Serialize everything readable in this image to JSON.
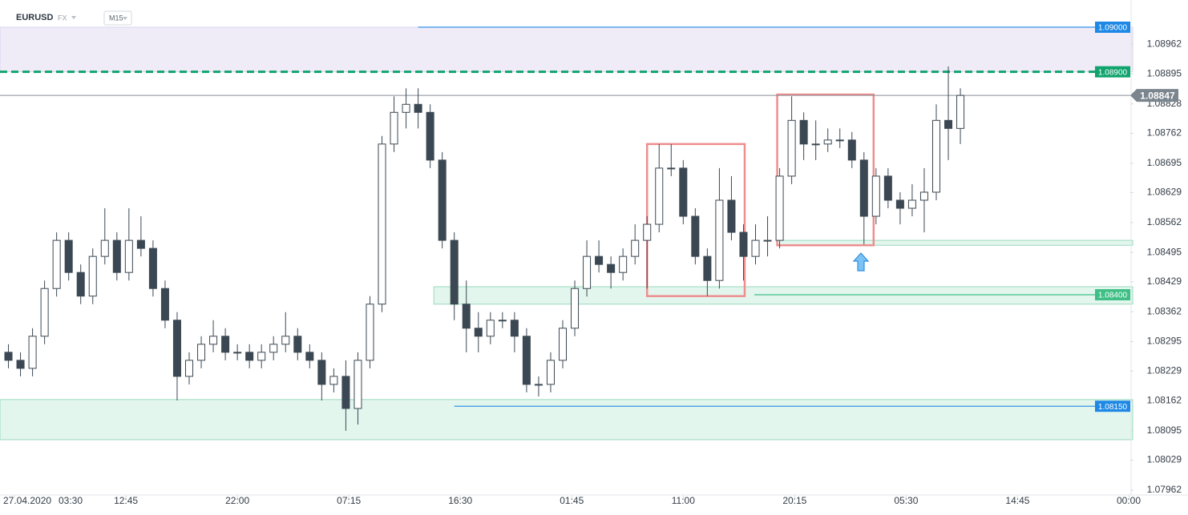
{
  "chart_data": {
    "type": "candlestick",
    "symbol": "EURUSD",
    "market": "FX",
    "timeframe": "M15",
    "date_label": "27.04.2020",
    "x": [
      3,
      4,
      5,
      6,
      7,
      8,
      9,
      10,
      11,
      12,
      13,
      14,
      15,
      16,
      17,
      18,
      19,
      20,
      21,
      22,
      23,
      24,
      25,
      26,
      27,
      28,
      29,
      30,
      31,
      32,
      33,
      34,
      35,
      36,
      37,
      38,
      39,
      40,
      41,
      42,
      43,
      44,
      45,
      46,
      47,
      48,
      49,
      50,
      51,
      52,
      53,
      54,
      55,
      56,
      57,
      58,
      59,
      60,
      61,
      62,
      63,
      64,
      65,
      66,
      67,
      68,
      69,
      70,
      71,
      72,
      73,
      74,
      75,
      76,
      77,
      78,
      79,
      80,
      81,
      82
    ],
    "open": [
      1.08271,
      1.08253,
      1.08235,
      1.08307,
      1.08414,
      1.08522,
      1.0845,
      1.08397,
      1.08486,
      1.08522,
      1.0845,
      1.08522,
      1.08504,
      1.08414,
      1.08343,
      1.08217,
      1.08253,
      1.08289,
      1.08307,
      1.08271,
      1.08271,
      1.08253,
      1.08271,
      1.08289,
      1.08307,
      1.08271,
      1.08253,
      1.08199,
      1.08217,
      1.08145,
      1.08253,
      1.08379,
      1.08738,
      1.08809,
      1.08827,
      1.08809,
      1.08702,
      1.08522,
      1.08379,
      1.08325,
      1.08307,
      1.08343,
      1.08343,
      1.08307,
      1.08199,
      1.08199,
      1.08253,
      1.08325,
      1.08414,
      1.08486,
      1.08468,
      1.0845,
      1.08486,
      1.08522,
      1.08558,
      1.08684,
      1.08684,
      1.08576,
      1.08486,
      1.08432,
      1.08612,
      1.0854,
      1.08486,
      1.08522,
      1.08522,
      1.08666,
      1.08791,
      1.08738,
      1.08738,
      1.08747,
      1.08747,
      1.08702,
      1.08576,
      1.08666,
      1.08612,
      1.08594,
      1.08612,
      1.0863,
      1.08791,
      1.08773
    ],
    "high": [
      1.08289,
      1.08271,
      1.08325,
      1.08432,
      1.0854,
      1.0854,
      1.08468,
      1.08504,
      1.08594,
      1.0854,
      1.08594,
      1.08576,
      1.08522,
      1.08432,
      1.08361,
      1.08271,
      1.08307,
      1.08343,
      1.08325,
      1.08289,
      1.08289,
      1.08289,
      1.08307,
      1.08361,
      1.08325,
      1.08289,
      1.08271,
      1.08235,
      1.08253,
      1.08271,
      1.08397,
      1.08756,
      1.08845,
      1.08863,
      1.08863,
      1.08827,
      1.0872,
      1.0854,
      1.08432,
      1.08361,
      1.08361,
      1.08361,
      1.08361,
      1.08325,
      1.08217,
      1.08271,
      1.08343,
      1.08432,
      1.08522,
      1.08522,
      1.08486,
      1.08504,
      1.08558,
      1.08576,
      1.08738,
      1.08738,
      1.08702,
      1.08594,
      1.08504,
      1.08684,
      1.08666,
      1.08558,
      1.08558,
      1.08576,
      1.08684,
      1.08845,
      1.08809,
      1.08791,
      1.08773,
      1.08773,
      1.08765,
      1.0872,
      1.08684,
      1.08684,
      1.0863,
      1.08648,
      1.08684,
      1.08827,
      1.08912,
      1.08863
    ],
    "low": [
      1.08235,
      1.08217,
      1.08217,
      1.08289,
      1.08396,
      1.08432,
      1.08379,
      1.08379,
      1.08468,
      1.08432,
      1.08432,
      1.08486,
      1.08396,
      1.08325,
      1.08163,
      1.08199,
      1.08235,
      1.08271,
      1.08253,
      1.08253,
      1.08235,
      1.08235,
      1.08253,
      1.08271,
      1.08253,
      1.08235,
      1.08163,
      1.08181,
      1.08095,
      1.08109,
      1.08235,
      1.08361,
      1.0872,
      1.08773,
      1.08773,
      1.08684,
      1.08504,
      1.08343,
      1.08271,
      1.08271,
      1.08289,
      1.08325,
      1.08271,
      1.08181,
      1.08172,
      1.08181,
      1.08235,
      1.08307,
      1.08396,
      1.0845,
      1.08414,
      1.08432,
      1.08468,
      1.08414,
      1.0854,
      1.08666,
      1.08558,
      1.08468,
      1.08397,
      1.08414,
      1.08522,
      1.08432,
      1.08468,
      1.08486,
      1.08504,
      1.08648,
      1.08702,
      1.08702,
      1.0872,
      1.08729,
      1.08684,
      1.08513,
      1.08558,
      1.08594,
      1.08558,
      1.08576,
      1.0854,
      1.08612,
      1.08702,
      1.08738
    ],
    "close": [
      1.08253,
      1.08235,
      1.08307,
      1.08414,
      1.08522,
      1.0845,
      1.08397,
      1.08486,
      1.08522,
      1.0845,
      1.08522,
      1.08504,
      1.08414,
      1.08343,
      1.08217,
      1.08253,
      1.08289,
      1.08307,
      1.08271,
      1.08271,
      1.08253,
      1.08271,
      1.08289,
      1.08307,
      1.08271,
      1.08253,
      1.08199,
      1.08217,
      1.08145,
      1.08253,
      1.08379,
      1.08738,
      1.08809,
      1.08827,
      1.08809,
      1.08702,
      1.08522,
      1.08379,
      1.08325,
      1.08307,
      1.08343,
      1.08343,
      1.08307,
      1.08199,
      1.08199,
      1.08253,
      1.08325,
      1.08414,
      1.08486,
      1.08468,
      1.0845,
      1.08486,
      1.08522,
      1.08558,
      1.08684,
      1.08684,
      1.08576,
      1.08486,
      1.08432,
      1.08612,
      1.0854,
      1.08486,
      1.08522,
      1.08522,
      1.08666,
      1.08791,
      1.08738,
      1.08738,
      1.08747,
      1.08747,
      1.08702,
      1.08576,
      1.08666,
      1.08612,
      1.08594,
      1.08612,
      1.0863,
      1.08791,
      1.08773,
      1.08847
    ],
    "bull_color": "#ffffff",
    "bear_color": "#3b4853",
    "wick_color": "#3b4853",
    "xlim": [
      2.3,
      96.1
    ],
    "ylim": [
      1.07951,
      1.09061
    ],
    "xticks": [
      {
        "value": 3.5,
        "label": "03:30"
      },
      {
        "value": 12.75,
        "label": "12:45"
      },
      {
        "value": 22,
        "label": "22:00"
      },
      {
        "value": 31.25,
        "label": "07:15"
      },
      {
        "value": 40.5,
        "label": "16:30"
      },
      {
        "value": 49.75,
        "label": "01:45"
      },
      {
        "value": 59,
        "label": "11:00"
      },
      {
        "value": 68.25,
        "label": "20:15"
      },
      {
        "value": 77.5,
        "label": "05:30"
      },
      {
        "value": 86.75,
        "label": "14:45"
      },
      {
        "value": 96,
        "label": "00:00"
      }
    ],
    "yticks": [
      1.08962,
      1.08895,
      1.08828,
      1.08762,
      1.08695,
      1.08629,
      1.08562,
      1.08495,
      1.08429,
      1.08362,
      1.08295,
      1.08229,
      1.08162,
      1.08095,
      1.08029,
      1.07962
    ],
    "zones": [
      {
        "low": 1.089,
        "high": 1.09,
        "start": 2.3,
        "color": "#efecf8",
        "border": "#d9d3ee"
      },
      {
        "low": 1.08379,
        "high": 1.08418,
        "start": 38.3,
        "color": "#e3f6ee",
        "border": "#9ad9bd"
      },
      {
        "low": 1.08511,
        "high": 1.08522,
        "start": 66.8,
        "color": "#e3f6ee",
        "border": "#9ad9bd"
      },
      {
        "low": 1.08075,
        "high": 1.08165,
        "start": 2.3,
        "color": "#e3f6ee",
        "border": "#9ad9bd"
      }
    ],
    "boxes": [
      {
        "x0": 56,
        "x1": 64.1,
        "low": 1.08397,
        "high": 1.08738,
        "color": "#ee8e8e"
      },
      {
        "x0": 66.8,
        "x1": 74.8,
        "low": 1.08511,
        "high": 1.08849,
        "color": "#ee8e8e"
      }
    ],
    "levels": [
      {
        "value": 1.09,
        "label": "1.09000",
        "start": 37,
        "color": "#1e88e5",
        "dash": false
      },
      {
        "value": 1.089,
        "label": "1.08900",
        "start": 2.3,
        "color": "#10a36e",
        "dash": true
      },
      {
        "value": 1.084,
        "label": "1.08400",
        "start": 64.9,
        "color": "#3fbf86",
        "dash": false
      },
      {
        "value": 1.0815,
        "label": "1.08150",
        "start": 40,
        "color": "#1e88e5",
        "dash": false
      }
    ],
    "price": {
      "value": 1.08847,
      "label": "1.08847",
      "color": "#7b858e"
    }
  }
}
